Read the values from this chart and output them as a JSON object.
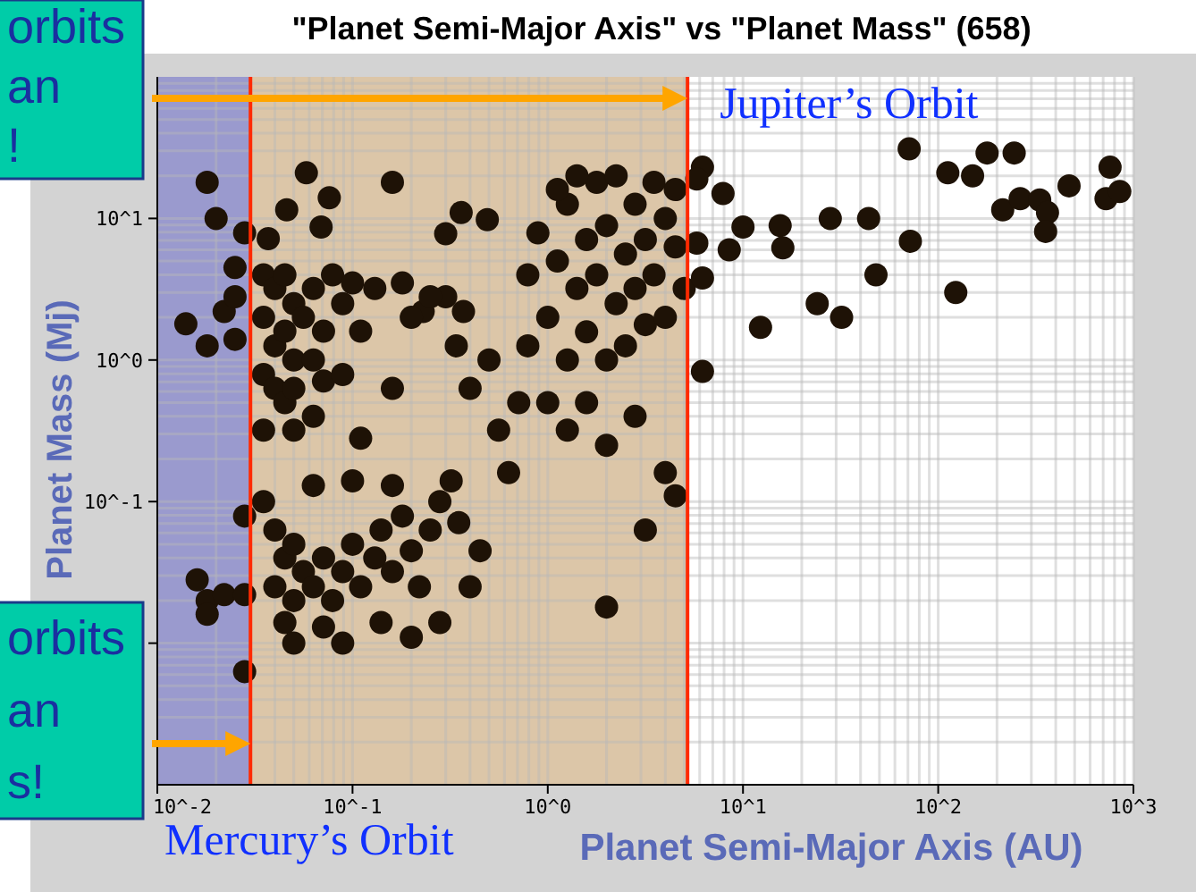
{
  "chart_data": {
    "type": "scatter",
    "title": "\"Planet Semi-Major Axis\"  vs \"Planet Mass\" (658)",
    "xlabel": "Planet Semi-Major Axis (AU)",
    "ylabel": "Planet Mass (Mj)",
    "log": "xy",
    "grid": true,
    "marker": "circle",
    "xlim": [
      0.01,
      1000
    ],
    "ylim": [
      0.001,
      100
    ],
    "xticks": [
      {
        "value": 0.01,
        "label": "10^-2"
      },
      {
        "value": 0.1,
        "label": "10^-1"
      },
      {
        "value": 1,
        "label": "10^0"
      },
      {
        "value": 10,
        "label": "10^1"
      },
      {
        "value": 100,
        "label": "10^2"
      },
      {
        "value": 1000,
        "label": "10^3"
      }
    ],
    "yticks": [
      {
        "value": 0.01,
        "label": null
      },
      {
        "value": 0.1,
        "label": "10^-1"
      },
      {
        "value": 1,
        "label": "10^0"
      },
      {
        "value": 10,
        "label": "10^1"
      }
    ],
    "bands": [
      {
        "axis": "x",
        "from": 0.01,
        "to": 0.03,
        "color": "#9a9ace"
      },
      {
        "axis": "x",
        "from": 0.03,
        "to": 5.2,
        "color": "#dcc6a8"
      }
    ],
    "ref_lines": [
      {
        "axis": "x",
        "value": 0.03,
        "label": "Mercury’s Orbit",
        "color": "#ff2a00"
      },
      {
        "axis": "x",
        "value": 5.2,
        "label": "Jupiter’s Orbit",
        "color": "#ff2a00"
      }
    ],
    "annotations": [
      "orbits an !",
      "orbits an s!"
    ],
    "series": [
      {
        "color": "#1e1206",
        "x": [
          0.018,
          0.02,
          0.028,
          0.025,
          0.014,
          0.018,
          0.022,
          0.025,
          0.025,
          0.016,
          0.018,
          0.018,
          0.022,
          0.028,
          0.028,
          0.028,
          0.058,
          0.076,
          0.046,
          0.069,
          0.037,
          0.16,
          0.36,
          0.49,
          0.3,
          0.23,
          0.3,
          0.37,
          0.34,
          0.035,
          0.04,
          0.045,
          0.05,
          0.035,
          0.04,
          0.045,
          0.05,
          0.035,
          0.04,
          0.045,
          0.05,
          0.056,
          0.063,
          0.071,
          0.079,
          0.089,
          0.1,
          0.11,
          0.13,
          0.063,
          0.071,
          0.035,
          0.05,
          0.063,
          0.089,
          0.11,
          0.16,
          0.2,
          0.25,
          0.18,
          0.035,
          0.04,
          0.045,
          0.04,
          0.05,
          0.056,
          0.05,
          0.063,
          0.071,
          0.079,
          0.089,
          0.1,
          0.11,
          0.13,
          0.14,
          0.16,
          0.18,
          0.2,
          0.22,
          0.25,
          0.28,
          0.35,
          0.32,
          0.045,
          0.05,
          0.071,
          0.089,
          0.14,
          0.2,
          0.28,
          0.4,
          0.45,
          0.063,
          0.1,
          0.16,
          0.56,
          0.63,
          0.71,
          0.5,
          0.4,
          0.79,
          0.89,
          1.0,
          1.12,
          1.26,
          1.26,
          1.41,
          1.58,
          1.58,
          1.78,
          1.78,
          2.0,
          2.0,
          2.24,
          2.24,
          2.5,
          2.5,
          2.8,
          2.8,
          3.16,
          3.16,
          3.5,
          3.5,
          4.0,
          4.0,
          4.5,
          4.5,
          5.0,
          1.0,
          1.26,
          1.58,
          2.0,
          2.8,
          4.0,
          4.5,
          2.0,
          3.16,
          0.79,
          1.12,
          1.41,
          71,
          112,
          150,
          178,
          245,
          214,
          263,
          331,
          363,
          355,
          468,
          759,
          724,
          851,
          7.9,
          10,
          8.5,
          15.5,
          16,
          28,
          44,
          72,
          48,
          123,
          24,
          32,
          12.3,
          6.2,
          5.8,
          5.8,
          6.2,
          6.2
        ],
        "values": [
          18,
          10,
          7.9,
          4.5,
          1.8,
          1.26,
          2.2,
          1.4,
          2.8,
          0.028,
          0.02,
          0.016,
          0.022,
          0.022,
          0.0063,
          0.079,
          21,
          14,
          11.5,
          8.7,
          7.2,
          18,
          11,
          9.8,
          7.8,
          2.2,
          2.8,
          2.2,
          1.26,
          4.0,
          3.2,
          4.0,
          2.5,
          2.0,
          1.26,
          1.6,
          1.0,
          0.79,
          0.63,
          0.5,
          0.63,
          2.0,
          3.2,
          1.6,
          4.0,
          2.5,
          3.5,
          1.6,
          3.2,
          1.0,
          0.71,
          0.32,
          0.32,
          0.4,
          0.79,
          0.28,
          0.63,
          2.0,
          2.8,
          3.5,
          0.1,
          0.063,
          0.04,
          0.025,
          0.05,
          0.032,
          0.02,
          0.025,
          0.04,
          0.02,
          0.032,
          0.05,
          0.025,
          0.04,
          0.063,
          0.032,
          0.079,
          0.045,
          0.025,
          0.063,
          0.1,
          0.071,
          0.14,
          0.014,
          0.01,
          0.013,
          0.01,
          0.014,
          0.011,
          0.014,
          0.025,
          0.045,
          0.13,
          0.14,
          0.13,
          0.32,
          0.16,
          0.5,
          1.0,
          0.63,
          4.0,
          7.9,
          2.0,
          5.0,
          12.6,
          1.0,
          3.2,
          7.1,
          1.58,
          18,
          4.0,
          1.0,
          8.9,
          2.5,
          20,
          5.6,
          1.26,
          12.6,
          3.2,
          7.1,
          1.78,
          18,
          4.0,
          10,
          2.0,
          6.3,
          16,
          3.2,
          0.5,
          0.32,
          0.5,
          0.25,
          0.4,
          0.16,
          0.11,
          0.018,
          0.063,
          1.26,
          16,
          20,
          31,
          21,
          20,
          29,
          29,
          11.5,
          13.8,
          13.5,
          11,
          8.1,
          17,
          23,
          13.8,
          15.5,
          15,
          8.7,
          6.0,
          8.9,
          6.2,
          10,
          10,
          6.9,
          4.0,
          3.0,
          2.5,
          2.0,
          1.7,
          23,
          19,
          6.7,
          3.8,
          0.83
        ]
      }
    ]
  }
}
